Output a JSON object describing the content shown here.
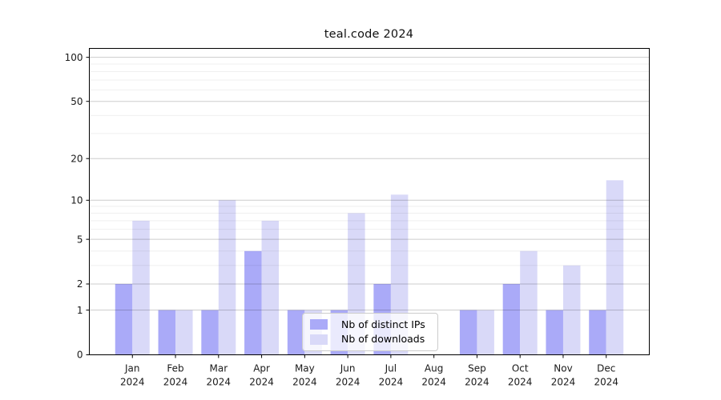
{
  "chart_data": {
    "type": "bar",
    "title": "teal.code 2024",
    "year": "2024",
    "categories": [
      "Jan",
      "Feb",
      "Mar",
      "Apr",
      "May",
      "Jun",
      "Jul",
      "Aug",
      "Sep",
      "Oct",
      "Nov",
      "Dec"
    ],
    "series": [
      {
        "name": "Nb of distinct IPs",
        "color": "#aaaaf8",
        "values": [
          2,
          1,
          1,
          4,
          1,
          1,
          2,
          0,
          1,
          2,
          1,
          1
        ]
      },
      {
        "name": "Nb of downloads",
        "color": "#d9d9f8",
        "values": [
          7,
          1,
          10,
          7,
          1,
          8,
          11,
          0,
          1,
          4,
          3,
          14
        ]
      }
    ],
    "yscale": "log1p",
    "ylim": [
      0,
      115
    ],
    "major_yticks": [
      0,
      1,
      2,
      5,
      10,
      20,
      50,
      100
    ],
    "minor_yticks": [
      3,
      4,
      6,
      7,
      8,
      9,
      30,
      40,
      60,
      70,
      80,
      90
    ],
    "grid": true,
    "legend_position": "lower center"
  },
  "colors": {
    "axis": "#000000",
    "major_grid": "rgba(0,0,0,0.20)",
    "minor_grid": "rgba(0,0,0,0.07)",
    "tick_label": "#1a1a1a",
    "background": "#ffffff"
  }
}
